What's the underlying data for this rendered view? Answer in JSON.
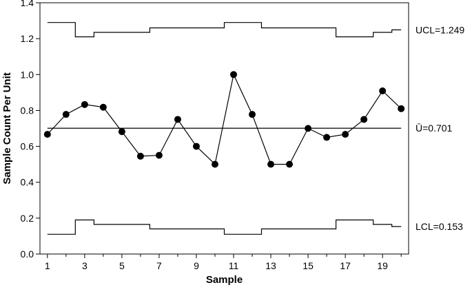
{
  "chart_data": {
    "type": "line",
    "chart_kind": "U control chart",
    "xlabel": "Sample",
    "ylabel": "Sample Count Per Unit",
    "xlim": [
      0.6,
      20.4
    ],
    "ylim": [
      0,
      1.4
    ],
    "x_ticks": [
      1,
      3,
      5,
      7,
      9,
      11,
      13,
      15,
      17,
      19
    ],
    "y_ticks": [
      0.0,
      0.2,
      0.4,
      0.6,
      0.8,
      1.0,
      1.2,
      1.4
    ],
    "y_tick_labels": [
      "0.0",
      "0.2",
      "0.4",
      "0.6",
      "0.8",
      "1.0",
      "1.2",
      "1.4"
    ],
    "grid": false,
    "colors": {
      "line": "#000000",
      "marker": "#000000"
    },
    "series": [
      {
        "x": [
          1,
          2,
          3,
          4,
          5,
          6,
          7,
          8,
          9,
          10,
          11,
          12,
          13,
          14,
          15,
          16,
          17,
          18,
          19,
          20
        ],
        "values": [
          0.667,
          0.778,
          0.833,
          0.818,
          0.682,
          0.545,
          0.55,
          0.75,
          0.6,
          0.5,
          1.0,
          0.778,
          0.5,
          0.5,
          0.7,
          0.65,
          0.667,
          0.75,
          0.909,
          0.81
        ],
        "marker": "filled-circle"
      }
    ],
    "center_line": {
      "value": 0.701,
      "label": "Ū=0.701"
    },
    "ucl": {
      "label": "UCL=1.249",
      "values": [
        1.29,
        1.29,
        1.21,
        1.235,
        1.235,
        1.235,
        1.26,
        1.26,
        1.26,
        1.26,
        1.29,
        1.29,
        1.26,
        1.26,
        1.26,
        1.26,
        1.21,
        1.21,
        1.235,
        1.249
      ]
    },
    "lcl": {
      "label": "LCL=0.153",
      "values": [
        0.11,
        0.11,
        0.19,
        0.165,
        0.165,
        0.165,
        0.14,
        0.14,
        0.14,
        0.14,
        0.11,
        0.11,
        0.14,
        0.14,
        0.14,
        0.14,
        0.19,
        0.19,
        0.165,
        0.153
      ]
    }
  }
}
